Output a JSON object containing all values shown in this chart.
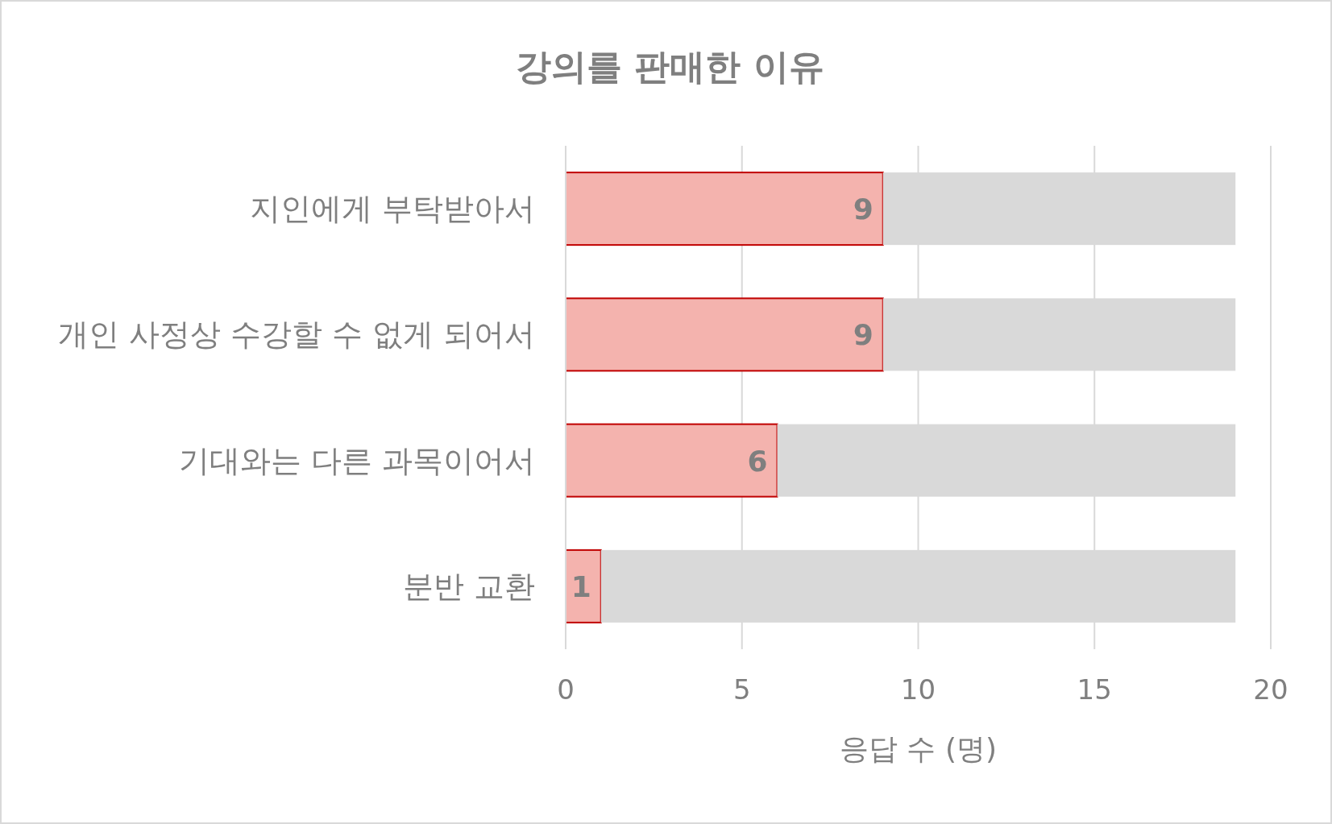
{
  "chart_data": {
    "type": "bar",
    "orientation": "horizontal",
    "stacked": true,
    "title": "강의를 판매한 이유",
    "xlabel": "응답 수 (명)",
    "categories": [
      "지인에게 부탁받아서",
      "개인 사정상 수강할 수 없게 되어서",
      "기대와는 다른 과목이어서",
      "분반 교환"
    ],
    "series": [
      {
        "color": "#f4b3ae",
        "values": [
          9,
          9,
          6,
          1
        ],
        "value_labels": [
          "9",
          "9",
          "6",
          "1"
        ]
      },
      {
        "color": "#d9d9d9",
        "values": [
          10,
          10,
          13,
          18
        ]
      }
    ],
    "xlim": [
      0,
      20
    ],
    "xticks": [
      0,
      5,
      10,
      15,
      20
    ],
    "grid": "x"
  }
}
